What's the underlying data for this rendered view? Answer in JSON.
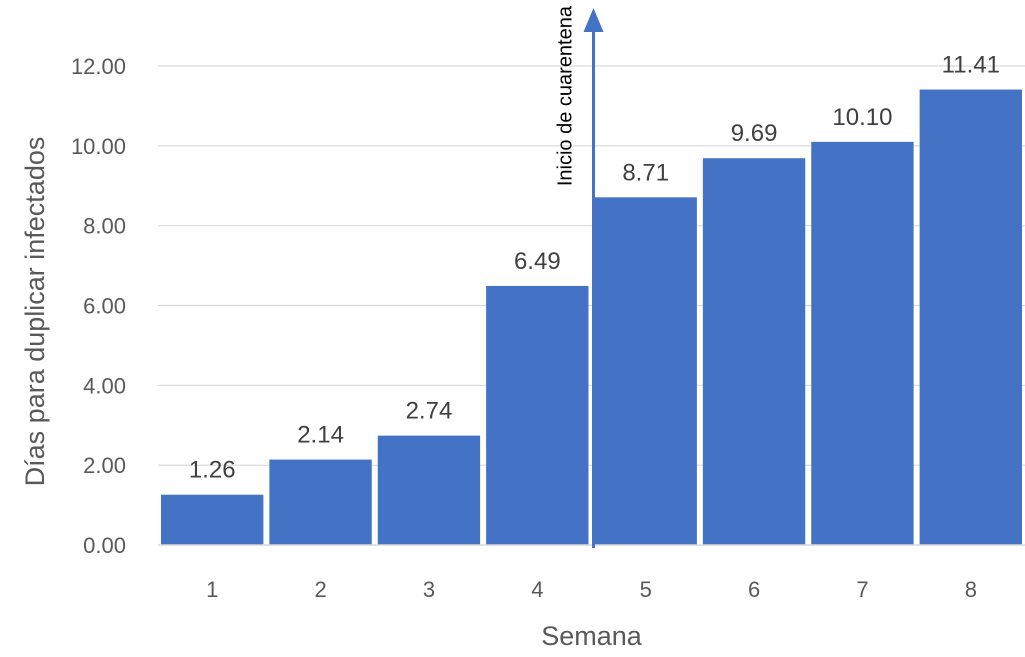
{
  "chart_data": {
    "type": "bar",
    "categories": [
      "1",
      "2",
      "3",
      "4",
      "5",
      "6",
      "7",
      "8"
    ],
    "values": [
      1.26,
      2.14,
      2.74,
      6.49,
      8.71,
      9.69,
      10.1,
      11.41
    ],
    "data_labels": [
      "1.26",
      "2.14",
      "2.74",
      "6.49",
      "8.71",
      "9.69",
      "10.10",
      "11.41"
    ],
    "title": "",
    "xlabel": "Semana",
    "ylabel": "Días para duplicar infectados",
    "ylim": [
      0,
      12
    ],
    "yticks": [
      "0.00",
      "2.00",
      "4.00",
      "6.00",
      "8.00",
      "10.00",
      "12.00"
    ],
    "grid": true,
    "bar_color": "#4472C4",
    "annotation": {
      "text": "Inicio de cuarentena",
      "between_categories": [
        "4",
        "5"
      ],
      "arrow_color": "#4472C4"
    }
  }
}
